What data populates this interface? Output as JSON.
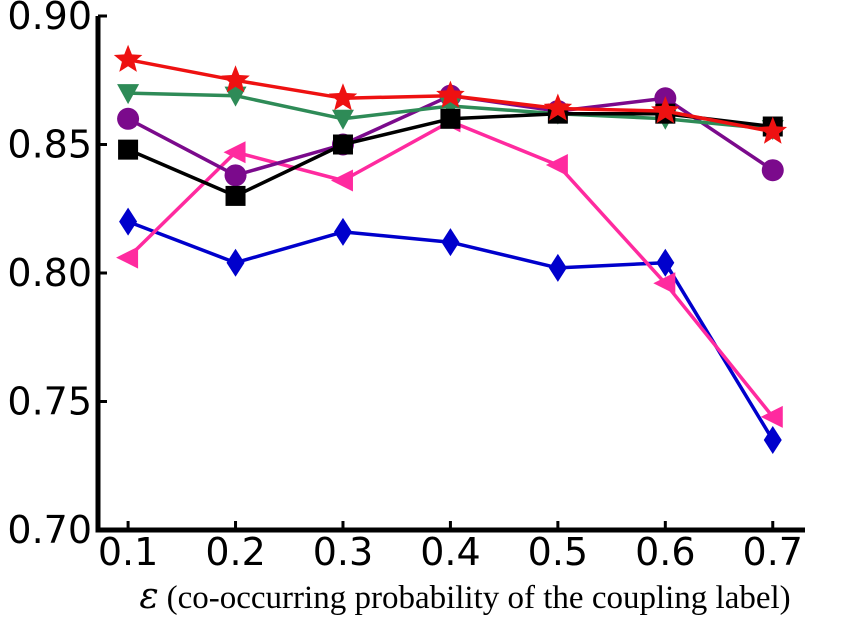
{
  "chart_data": {
    "type": "line",
    "title": "",
    "xlabel_symbol": "ε",
    "xlabel": "(co-occurring probability of the coupling label)",
    "ylabel": "",
    "x": [
      0.1,
      0.2,
      0.3,
      0.4,
      0.5,
      0.6,
      0.7
    ],
    "x_tick_labels": [
      "0.1",
      "0.2",
      "0.3",
      "0.4",
      "0.5",
      "0.6",
      "0.7"
    ],
    "y_ticks": [
      0.7,
      0.75,
      0.8,
      0.85,
      0.9
    ],
    "y_tick_labels": [
      "0.70",
      "0.75",
      "0.80",
      "0.85",
      "0.90"
    ],
    "xlim": [
      0.072,
      0.73
    ],
    "ylim": [
      0.7,
      0.9
    ],
    "grid": false,
    "legend": "none",
    "series": [
      {
        "color": "#0000cc",
        "marker": "diamond",
        "values": [
          0.82,
          0.804,
          0.816,
          0.812,
          0.802,
          0.804,
          0.735
        ]
      },
      {
        "color": "#ff2a9f",
        "marker": "triangle-left",
        "values": [
          0.806,
          0.847,
          0.836,
          0.859,
          0.842,
          0.796,
          0.744
        ]
      },
      {
        "color": "#7b0a8c",
        "marker": "circle",
        "values": [
          0.86,
          0.838,
          0.85,
          0.869,
          0.863,
          0.868,
          0.84
        ]
      },
      {
        "color": "#2e8b57",
        "marker": "triangle-down",
        "values": [
          0.87,
          0.869,
          0.86,
          0.865,
          0.862,
          0.86,
          0.856
        ]
      },
      {
        "color": "#000000",
        "marker": "square",
        "values": [
          0.848,
          0.83,
          0.85,
          0.86,
          0.862,
          0.862,
          0.857
        ]
      },
      {
        "color": "#ee1111",
        "marker": "star",
        "values": [
          0.883,
          0.875,
          0.868,
          0.869,
          0.864,
          0.863,
          0.855
        ]
      }
    ]
  }
}
